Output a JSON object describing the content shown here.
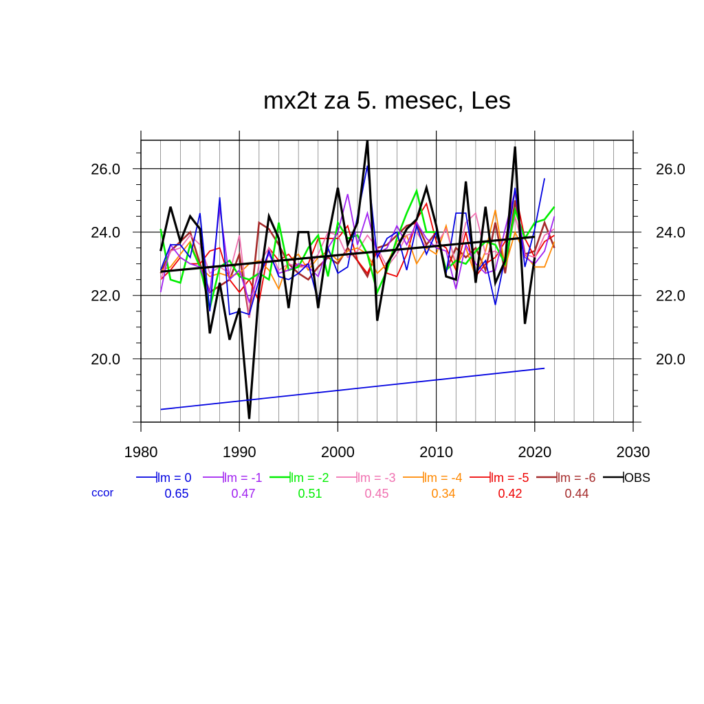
{
  "chart_data": {
    "type": "line",
    "title": "mx2t za 5. mesec, Les",
    "xlabel": "",
    "ylabel": "",
    "xlim": [
      1980,
      2030
    ],
    "ylim": [
      18.0,
      26.9
    ],
    "x_ticks": [
      "1980",
      "1990",
      "2000",
      "2010",
      "2020",
      "2030"
    ],
    "y_ticks": [
      "20.0",
      "22.0",
      "24.0",
      "26.0"
    ],
    "grid": true,
    "legend_position": "bottom",
    "ccor_label": "ccor",
    "series": [
      {
        "name": "lm = 0",
        "ccor": "0.65",
        "color": "#0000e0",
        "width": 1.8,
        "start": 1982,
        "values": [
          22.8,
          23.6,
          23.6,
          23.2,
          24.6,
          21.5,
          25.1,
          21.4,
          21.5,
          21.4,
          22.5,
          23.4,
          22.6,
          22.5,
          22.7,
          23.0,
          21.8,
          23.5,
          22.7,
          22.9,
          24.5,
          26.1,
          23.2,
          23.8,
          24.0,
          22.8,
          24.2,
          23.3,
          24.0,
          22.7,
          24.6,
          24.6,
          22.7,
          23.1,
          21.7,
          23.2,
          25.4,
          22.9,
          24.1,
          25.7
        ]
      },
      {
        "name": "lm = -1",
        "ccor": "0.47",
        "color": "#a020f0",
        "width": 1.8,
        "start": 1982,
        "values": [
          22.1,
          23.6,
          23.2,
          23.0,
          22.9,
          22.1,
          24.8,
          22.5,
          22.8,
          21.8,
          22.7,
          23.3,
          22.7,
          22.8,
          23.0,
          22.9,
          22.6,
          23.5,
          24.0,
          25.2,
          23.6,
          24.6,
          23.3,
          23.5,
          24.2,
          23.6,
          24.3,
          23.8,
          23.5,
          23.4,
          22.2,
          23.6,
          23.0,
          22.7,
          22.8,
          24.1,
          25.3,
          23.2,
          23.0,
          23.4,
          24.5
        ]
      },
      {
        "name": "lm = -2",
        "ccor": "0.51",
        "color": "#00ee00",
        "width": 2.6,
        "start": 1982,
        "values": [
          24.1,
          22.5,
          22.4,
          23.6,
          22.9,
          21.6,
          22.9,
          23.1,
          22.6,
          22.5,
          22.7,
          22.5,
          24.3,
          22.8,
          22.9,
          23.5,
          23.9,
          22.6,
          24.3,
          23.8,
          23.9,
          23.3,
          22.1,
          22.8,
          23.8,
          24.6,
          25.3,
          24.0,
          24.0,
          22.8,
          23.1,
          23.0,
          23.4,
          23.7,
          23.6,
          23.0,
          24.7,
          23.8,
          24.3,
          24.4,
          24.8
        ]
      },
      {
        "name": "lm = -3",
        "ccor": "0.45",
        "color": "#f070b0",
        "width": 1.8,
        "start": 1982,
        "values": [
          22.5,
          23.4,
          23.5,
          23.9,
          23.6,
          22.7,
          22.9,
          22.7,
          23.9,
          21.3,
          23.0,
          23.5,
          22.8,
          23.0,
          22.9,
          22.9,
          23.3,
          24.0,
          23.9,
          23.2,
          23.4,
          23.9,
          23.5,
          22.9,
          23.3,
          23.9,
          24.0,
          23.5,
          23.6,
          24.1,
          23.0,
          24.3,
          24.6,
          23.3,
          23.4,
          23.1,
          24.5,
          23.3,
          23.2,
          23.9,
          24.1
        ]
      },
      {
        "name": "lm = -4",
        "ccor": "0.34",
        "color": "#ff8800",
        "width": 1.8,
        "start": 1982,
        "values": [
          22.8,
          22.9,
          23.3,
          23.7,
          22.9,
          22.6,
          22.7,
          22.6,
          22.7,
          23.0,
          23.1,
          22.8,
          22.2,
          23.1,
          23.3,
          22.8,
          23.2,
          23.4,
          23.1,
          23.4,
          23.5,
          23.3,
          22.7,
          23.0,
          23.7,
          23.9,
          23.0,
          23.5,
          23.3,
          24.2,
          22.9,
          23.5,
          22.6,
          23.4,
          24.7,
          22.9,
          24.0,
          23.3,
          22.9,
          22.9,
          23.7
        ]
      },
      {
        "name": "lm = -5",
        "ccor": "0.42",
        "color": "#ee0000",
        "width": 1.8,
        "start": 1982,
        "values": [
          22.5,
          22.8,
          23.2,
          23.0,
          23.0,
          23.4,
          23.5,
          22.5,
          22.1,
          22.5,
          21.8,
          23.5,
          23.1,
          23.3,
          22.9,
          23.0,
          23.8,
          23.8,
          23.8,
          24.2,
          23.1,
          22.7,
          23.4,
          22.7,
          22.6,
          23.3,
          24.4,
          24.9,
          23.7,
          23.5,
          22.8,
          24.0,
          22.6,
          23.0,
          23.2,
          23.7,
          25.3,
          23.8,
          23.2,
          23.7,
          23.9
        ]
      },
      {
        "name": "lm = -6",
        "ccor": "0.44",
        "color": "#a52a2a",
        "width": 2.6,
        "start": 1982,
        "values": [
          22.7,
          23.4,
          23.7,
          24.0,
          23.0,
          22.1,
          22.3,
          22.5,
          23.3,
          21.3,
          24.3,
          24.1,
          23.6,
          23.0,
          22.7,
          22.5,
          22.9,
          23.2,
          23.0,
          23.5,
          23.1,
          22.6,
          23.5,
          23.6,
          23.9,
          24.2,
          24.3,
          23.6,
          24.0,
          22.8,
          23.5,
          23.2,
          23.5,
          22.8,
          24.3,
          22.7,
          25.0,
          23.3,
          23.4,
          24.3,
          23.5
        ]
      },
      {
        "name": "OBS",
        "ccor": "",
        "color": "#000000",
        "width": 3.2,
        "start": 1982,
        "values": [
          23.4,
          24.8,
          23.7,
          24.5,
          24.1,
          20.8,
          22.4,
          20.6,
          21.6,
          18.1,
          22.2,
          24.5,
          23.8,
          21.6,
          24.0,
          24.0,
          21.6,
          23.8,
          25.4,
          23.6,
          24.3,
          26.9,
          21.2,
          23.0,
          23.5,
          24.1,
          24.4,
          25.4,
          24.2,
          22.6,
          22.5,
          25.6,
          22.4,
          24.8,
          22.4,
          23.1,
          26.7,
          21.1,
          23.2
        ]
      }
    ],
    "trend_lines": [
      {
        "color": "#000000",
        "width": 3.2,
        "x": [
          1982,
          2020
        ],
        "y": [
          22.75,
          23.85
        ]
      },
      {
        "color": "#0000e0",
        "width": 1.8,
        "x": [
          1982,
          2021
        ],
        "y": [
          18.4,
          19.7
        ]
      }
    ]
  }
}
